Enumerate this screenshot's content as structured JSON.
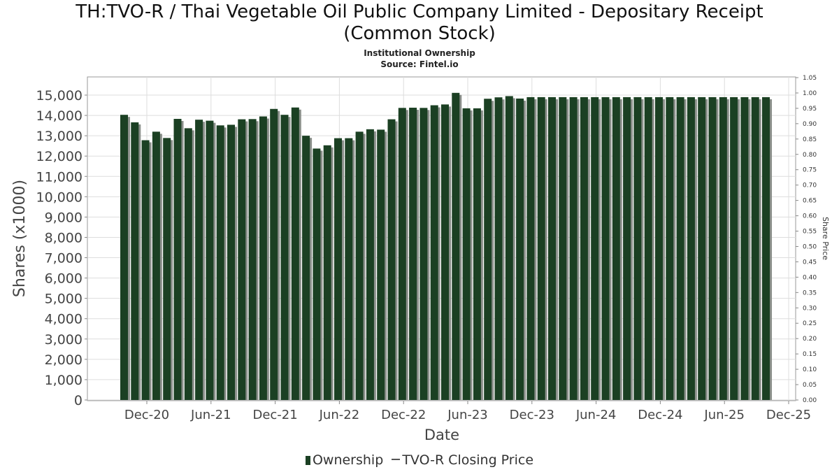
{
  "title_line1": "TH:TVO-R / Thai Vegetable Oil Public Company Limited - Depositary Receipt",
  "title_line2": "(Common Stock)",
  "subtitle_line1": "Institutional Ownership",
  "subtitle_line2": "Source: Fintel.io",
  "colors": {
    "bar": "#1b4023",
    "bar_shadow": "#8a8f8a",
    "grid": "#dddddd",
    "axis": "#888888"
  },
  "chart_data": {
    "type": "bar",
    "title": "TH:TVO-R / Thai Vegetable Oil Public Company Limited - Depositary Receipt (Common Stock)",
    "xlabel": "Date",
    "ylabel": "Shares (x1000)",
    "y2label": "Share Price",
    "ylim": [
      0,
      15800
    ],
    "y2lim": [
      0,
      1.05
    ],
    "y_ticks": [
      "0",
      "1,000",
      "2,000",
      "3,000",
      "4,000",
      "5,000",
      "6,000",
      "7,000",
      "8,000",
      "9,000",
      "10,000",
      "11,000",
      "12,000",
      "13,000",
      "14,000",
      "15,000"
    ],
    "y2_ticks": [
      "0.00",
      "0.05",
      "0.10",
      "0.15",
      "0.20",
      "0.25",
      "0.30",
      "0.35",
      "0.40",
      "0.45",
      "0.50",
      "0.55",
      "0.60",
      "0.65",
      "0.70",
      "0.75",
      "0.80",
      "0.85",
      "0.90",
      "0.95",
      "1.00",
      "1.05"
    ],
    "x_ticks": [
      "Dec-20",
      "Jun-21",
      "Dec-21",
      "Jun-22",
      "Dec-22",
      "Jun-23",
      "Dec-23",
      "Jun-24",
      "Dec-24",
      "Jun-25",
      "Dec-25"
    ],
    "grid": true,
    "legend_position": "bottom",
    "series": [
      {
        "name": "Ownership",
        "values": [
          14030,
          13660,
          12780,
          13200,
          12890,
          13830,
          13370,
          13790,
          13740,
          13510,
          13540,
          13810,
          13820,
          13950,
          14320,
          14030,
          14390,
          13000,
          12370,
          12530,
          12880,
          12880,
          13200,
          13320,
          13300,
          13810,
          14370,
          14380,
          14370,
          14500,
          14540,
          15110,
          14350,
          14350,
          14820,
          14890,
          14950,
          14830,
          14900,
          14900,
          14900,
          14900,
          14900,
          14900,
          14900,
          14900,
          14900,
          14900,
          14900,
          14900,
          14900,
          14900,
          14900,
          14900,
          14900,
          14900,
          14900,
          14900,
          14900,
          14900,
          14900
        ]
      },
      {
        "name": "TVO-R Closing Price",
        "values": []
      }
    ]
  }
}
